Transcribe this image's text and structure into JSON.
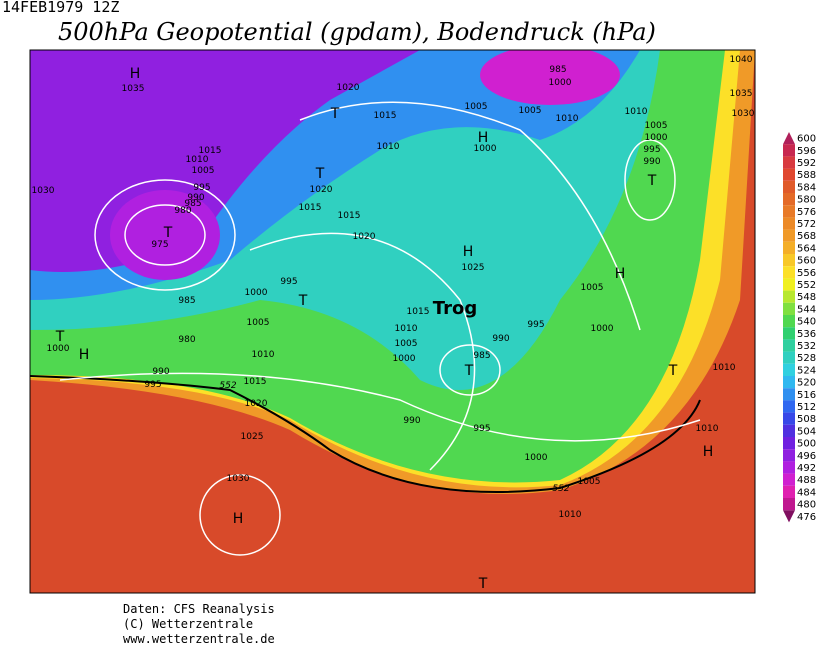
{
  "header": {
    "timestamp": "14FEB1979 12Z",
    "title": "500hPa Geopotential (gpdam), Bodendruck (hPa)"
  },
  "colorbar": {
    "labels": [
      600,
      596,
      592,
      588,
      584,
      580,
      576,
      572,
      568,
      564,
      560,
      556,
      552,
      548,
      544,
      540,
      536,
      532,
      528,
      524,
      520,
      516,
      512,
      508,
      504,
      500,
      496,
      492,
      488,
      484,
      480,
      476
    ],
    "colors": [
      "#b0205a",
      "#c82850",
      "#d83a40",
      "#e04830",
      "#e05a2a",
      "#e46a28",
      "#e87a28",
      "#ec8a28",
      "#f09a28",
      "#f4ae28",
      "#f8c828",
      "#fce028",
      "#f0f020",
      "#b8e830",
      "#80e040",
      "#50d850",
      "#30d070",
      "#30d0a0",
      "#30d0c0",
      "#30d0e0",
      "#30b8f0",
      "#3090f0",
      "#3068f0",
      "#3848e8",
      "#5030e0",
      "#7020e0",
      "#9020e0",
      "#b020e0",
      "#d020d0",
      "#e020b0",
      "#c01890",
      "#801060"
    ]
  },
  "map": {
    "annotation": "Trog",
    "pressure_centers": [
      "H",
      "T",
      "H",
      "T",
      "T",
      "T",
      "H",
      "H",
      "T",
      "T",
      "H",
      "T",
      "T",
      "H",
      "H",
      "T"
    ],
    "isobar_labels": [
      1035,
      1020,
      1015,
      1010,
      1005,
      1005,
      1010,
      1010,
      1005,
      1000,
      995,
      990,
      1000,
      1020,
      1015,
      1015,
      1020,
      1025,
      1005,
      1000,
      995,
      985,
      980,
      1000,
      1005,
      1010,
      990,
      995,
      1015,
      1020,
      1015,
      1010,
      1005,
      1000,
      985,
      990,
      995,
      1000,
      990,
      995,
      1000,
      1005,
      1010,
      1025,
      1030,
      1010,
      1010,
      1030,
      1040,
      1035,
      1030,
      1015,
      1010,
      1005,
      995,
      990,
      985,
      980,
      975,
      1000,
      985
    ],
    "contour_labels": [
      552,
      552
    ]
  },
  "footer": {
    "lines": [
      "Daten: CFS Reanalysis",
      "(C) Wetterzentrale",
      "www.wetterzentrale.de"
    ]
  }
}
